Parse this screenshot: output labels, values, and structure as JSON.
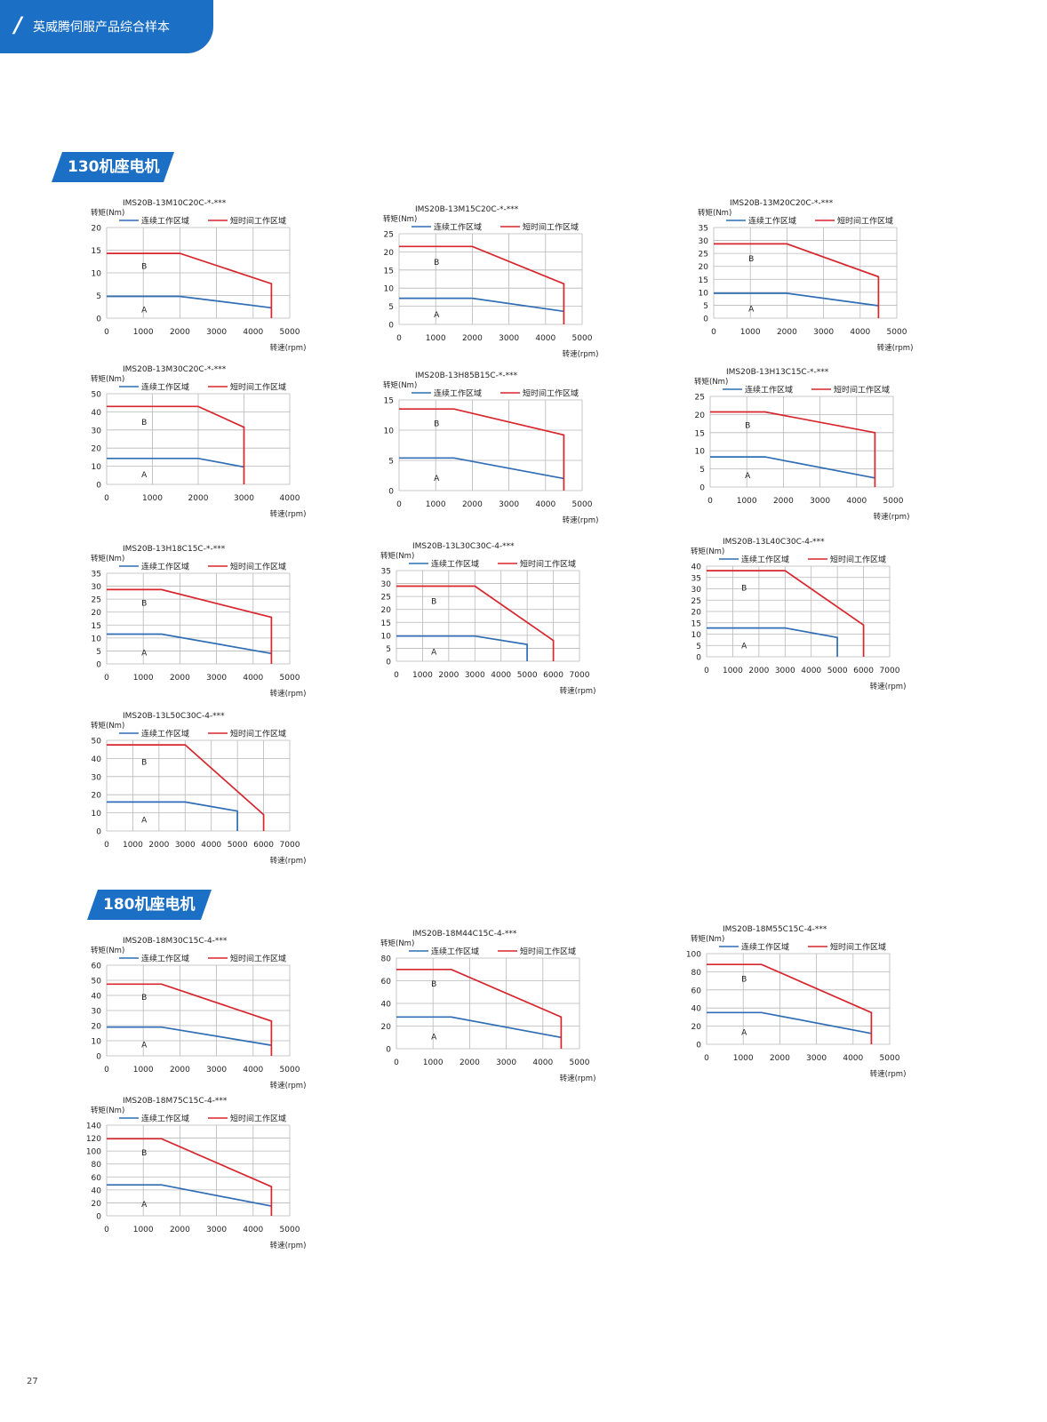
{
  "header": {
    "title": "英威腾伺服产品综合样本"
  },
  "sections": [
    {
      "label": "130机座电机"
    },
    {
      "label": "180机座电机"
    }
  ],
  "page_number": "27",
  "legend": {
    "continuous": "连续工作区域",
    "short": "短时间工作区域"
  },
  "colors": {
    "continuous": "#2f6db5",
    "short": "#d7262d",
    "accent": "#1b6fc4",
    "grid": "#b8b8b8"
  },
  "chart_data": [
    {
      "type": "line",
      "title": "IMS20B-13M10C20C-*-***",
      "ylabel": "转矩(Nm)",
      "xlabel": "转速(rpm)",
      "xlim": [
        0,
        5000
      ],
      "ylim": [
        0,
        20
      ],
      "xticks": [
        0,
        1000,
        2000,
        3000,
        4000,
        5000
      ],
      "yticks": [
        0,
        5,
        10,
        15,
        20
      ],
      "region_labels": [
        "A",
        "B"
      ],
      "series": [
        {
          "name": "连续工作区域",
          "x": [
            0,
            2000,
            4500
          ],
          "y": [
            4.8,
            4.8,
            2.3
          ]
        },
        {
          "name": "短时间工作区域",
          "x": [
            0,
            2000,
            4500,
            4500
          ],
          "y": [
            14.3,
            14.3,
            7.6,
            0
          ]
        }
      ]
    },
    {
      "type": "line",
      "title": "IMS20B-13M15C20C-*-***",
      "ylabel": "转矩(Nm)",
      "xlabel": "转速(rpm)",
      "xlim": [
        0,
        5000
      ],
      "ylim": [
        0,
        25
      ],
      "xticks": [
        0,
        1000,
        2000,
        3000,
        4000,
        5000
      ],
      "yticks": [
        0,
        5,
        10,
        15,
        20,
        25
      ],
      "region_labels": [
        "A",
        "B"
      ],
      "series": [
        {
          "name": "连续工作区域",
          "x": [
            0,
            2000,
            4500
          ],
          "y": [
            7.2,
            7.2,
            3.6
          ]
        },
        {
          "name": "短时间工作区域",
          "x": [
            0,
            2000,
            4500,
            4500
          ],
          "y": [
            21.5,
            21.5,
            11.2,
            0
          ]
        }
      ]
    },
    {
      "type": "line",
      "title": "IMS20B-13M20C20C-*-***",
      "ylabel": "转矩(Nm)",
      "xlabel": "转速(rpm)",
      "xlim": [
        0,
        5000
      ],
      "ylim": [
        0,
        35
      ],
      "xticks": [
        0,
        1000,
        2000,
        3000,
        4000,
        5000
      ],
      "yticks": [
        0,
        5,
        10,
        15,
        20,
        25,
        30,
        35
      ],
      "region_labels": [
        "A",
        "B"
      ],
      "series": [
        {
          "name": "连续工作区域",
          "x": [
            0,
            2000,
            4500
          ],
          "y": [
            9.6,
            9.6,
            4.8
          ]
        },
        {
          "name": "短时间工作区域",
          "x": [
            0,
            2000,
            4500,
            4500
          ],
          "y": [
            28.7,
            28.7,
            16,
            0
          ]
        }
      ]
    },
    {
      "type": "line",
      "title": "IMS20B-13M30C20C-*-***",
      "ylabel": "转矩(Nm)",
      "xlabel": "转速(rpm)",
      "xlim": [
        0,
        4000
      ],
      "ylim": [
        0,
        50
      ],
      "xticks": [
        0,
        1000,
        2000,
        3000,
        4000
      ],
      "yticks": [
        0,
        10,
        20,
        30,
        40,
        50
      ],
      "region_labels": [
        "A",
        "B"
      ],
      "series": [
        {
          "name": "连续工作区域",
          "x": [
            0,
            2000,
            3000
          ],
          "y": [
            14.3,
            14.3,
            9.6
          ]
        },
        {
          "name": "短时间工作区域",
          "x": [
            0,
            2000,
            3000,
            3000
          ],
          "y": [
            43,
            43,
            31.5,
            0
          ]
        }
      ]
    },
    {
      "type": "line",
      "title": "IMS20B-13H85B15C-*-***",
      "ylabel": "转矩(Nm)",
      "xlabel": "转速(rpm)",
      "xlim": [
        0,
        5000
      ],
      "ylim": [
        0,
        15
      ],
      "xticks": [
        0,
        1000,
        2000,
        3000,
        4000,
        5000
      ],
      "yticks": [
        0,
        5,
        10,
        15
      ],
      "region_labels": [
        "A",
        "B"
      ],
      "series": [
        {
          "name": "连续工作区域",
          "x": [
            0,
            1500,
            4500
          ],
          "y": [
            5.4,
            5.4,
            2
          ]
        },
        {
          "name": "短时间工作区域",
          "x": [
            0,
            1500,
            4500,
            4500
          ],
          "y": [
            13.5,
            13.5,
            9.2,
            0
          ]
        }
      ]
    },
    {
      "type": "line",
      "title": "IMS20B-13H13C15C-*-***",
      "ylabel": "转矩(Nm)",
      "xlabel": "转速(rpm)",
      "xlim": [
        0,
        5000
      ],
      "ylim": [
        0,
        25
      ],
      "xticks": [
        0,
        1000,
        2000,
        3000,
        4000,
        5000
      ],
      "yticks": [
        0,
        5,
        10,
        15,
        20,
        25
      ],
      "region_labels": [
        "A",
        "B"
      ],
      "series": [
        {
          "name": "连续工作区域",
          "x": [
            0,
            1500,
            4500
          ],
          "y": [
            8.3,
            8.3,
            2.5
          ]
        },
        {
          "name": "短时间工作区域",
          "x": [
            0,
            1500,
            4500,
            4500
          ],
          "y": [
            20.7,
            20.7,
            15,
            0
          ]
        }
      ]
    },
    {
      "type": "line",
      "title": "IMS20B-13H18C15C-*-***",
      "ylabel": "转矩(Nm)",
      "xlabel": "转速(rpm)",
      "xlim": [
        0,
        5000
      ],
      "ylim": [
        0,
        35
      ],
      "xticks": [
        0,
        1000,
        2000,
        3000,
        4000,
        5000
      ],
      "yticks": [
        0,
        5,
        10,
        15,
        20,
        25,
        30,
        35
      ],
      "region_labels": [
        "A",
        "B"
      ],
      "series": [
        {
          "name": "连续工作区域",
          "x": [
            0,
            1500,
            4500
          ],
          "y": [
            11.5,
            11.5,
            4
          ]
        },
        {
          "name": "短时间工作区域",
          "x": [
            0,
            1500,
            4500,
            4500
          ],
          "y": [
            28.7,
            28.7,
            18,
            0
          ]
        }
      ]
    },
    {
      "type": "line",
      "title": "IMS20B-13L30C30C-4-***",
      "ylabel": "转矩(Nm)",
      "xlabel": "转速(rpm)",
      "xlim": [
        0,
        7000
      ],
      "ylim": [
        0,
        35
      ],
      "xticks": [
        0,
        1000,
        2000,
        3000,
        4000,
        5000,
        6000,
        7000
      ],
      "yticks": [
        0,
        5,
        10,
        15,
        20,
        25,
        30,
        35
      ],
      "region_labels": [
        "A",
        "B"
      ],
      "series": [
        {
          "name": "连续工作区域",
          "x": [
            0,
            3000,
            5000,
            5000
          ],
          "y": [
            9.7,
            9.7,
            6.5,
            0
          ]
        },
        {
          "name": "短时间工作区域",
          "x": [
            0,
            3000,
            6000,
            6000
          ],
          "y": [
            29,
            29,
            8,
            0
          ]
        }
      ]
    },
    {
      "type": "line",
      "title": "IMS20B-13L40C30C-4-***",
      "ylabel": "转矩(Nm)",
      "xlabel": "转速(rpm)",
      "xlim": [
        0,
        7000
      ],
      "ylim": [
        0,
        40
      ],
      "xticks": [
        0,
        1000,
        2000,
        3000,
        4000,
        5000,
        6000,
        7000
      ],
      "yticks": [
        0,
        5,
        10,
        15,
        20,
        25,
        30,
        35,
        40
      ],
      "region_labels": [
        "A",
        "B"
      ],
      "series": [
        {
          "name": "连续工作区域",
          "x": [
            0,
            3000,
            5000,
            5000
          ],
          "y": [
            12.7,
            12.7,
            8.5,
            0
          ]
        },
        {
          "name": "短时间工作区域",
          "x": [
            0,
            3000,
            6000,
            6000
          ],
          "y": [
            38,
            38,
            14,
            0
          ]
        }
      ]
    },
    {
      "type": "line",
      "title": "IMS20B-13L50C30C-4-***",
      "ylabel": "转矩(Nm)",
      "xlabel": "转速(rpm)",
      "xlim": [
        0,
        7000
      ],
      "ylim": [
        0,
        50
      ],
      "xticks": [
        0,
        1000,
        2000,
        3000,
        4000,
        5000,
        6000,
        7000
      ],
      "yticks": [
        0,
        10,
        20,
        30,
        40,
        50
      ],
      "region_labels": [
        "A",
        "B"
      ],
      "series": [
        {
          "name": "连续工作区域",
          "x": [
            0,
            3000,
            5000,
            5000
          ],
          "y": [
            16,
            16,
            11,
            0
          ]
        },
        {
          "name": "短时间工作区域",
          "x": [
            0,
            3000,
            6000,
            6000
          ],
          "y": [
            47.5,
            47.5,
            9,
            0
          ]
        }
      ]
    },
    {
      "type": "line",
      "title": "IMS20B-18M30C15C-4-***",
      "ylabel": "转矩(Nm)",
      "xlabel": "转速(rpm)",
      "xlim": [
        0,
        5000
      ],
      "ylim": [
        0,
        60
      ],
      "xticks": [
        0,
        1000,
        2000,
        3000,
        4000,
        5000
      ],
      "yticks": [
        0,
        10,
        20,
        30,
        40,
        50,
        60
      ],
      "region_labels": [
        "A",
        "B"
      ],
      "series": [
        {
          "name": "连续工作区域",
          "x": [
            0,
            1500,
            4500
          ],
          "y": [
            19,
            19,
            7
          ]
        },
        {
          "name": "短时间工作区域",
          "x": [
            0,
            1500,
            4500,
            4500
          ],
          "y": [
            47.5,
            47.5,
            23,
            0
          ]
        }
      ]
    },
    {
      "type": "line",
      "title": "IMS20B-18M44C15C-4-***",
      "ylabel": "转矩(Nm)",
      "xlabel": "转速(rpm)",
      "xlim": [
        0,
        5000
      ],
      "ylim": [
        0,
        80
      ],
      "xticks": [
        0,
        1000,
        2000,
        3000,
        4000,
        5000
      ],
      "yticks": [
        0,
        20,
        40,
        60,
        80
      ],
      "region_labels": [
        "A",
        "B"
      ],
      "series": [
        {
          "name": "连续工作区域",
          "x": [
            0,
            1500,
            4500
          ],
          "y": [
            28,
            28,
            10
          ]
        },
        {
          "name": "短时间工作区域",
          "x": [
            0,
            1500,
            4500,
            4500
          ],
          "y": [
            70,
            70,
            28,
            0
          ]
        }
      ]
    },
    {
      "type": "line",
      "title": "IMS20B-18M55C15C-4-***",
      "ylabel": "转矩(Nm)",
      "xlabel": "转速(rpm)",
      "xlim": [
        0,
        5000
      ],
      "ylim": [
        0,
        100
      ],
      "xticks": [
        0,
        1000,
        2000,
        3000,
        4000,
        5000
      ],
      "yticks": [
        0,
        20,
        40,
        60,
        80,
        100
      ],
      "region_labels": [
        "A",
        "B"
      ],
      "series": [
        {
          "name": "连续工作区域",
          "x": [
            0,
            1500,
            4500
          ],
          "y": [
            35,
            35,
            12
          ]
        },
        {
          "name": "短时间工作区域",
          "x": [
            0,
            1500,
            4500,
            4500
          ],
          "y": [
            88,
            88,
            35,
            0
          ]
        }
      ]
    },
    {
      "type": "line",
      "title": "IMS20B-18M75C15C-4-***",
      "ylabel": "转矩(Nm)",
      "xlabel": "转速(rpm)",
      "xlim": [
        0,
        5000
      ],
      "ylim": [
        0,
        140
      ],
      "xticks": [
        0,
        1000,
        2000,
        3000,
        4000,
        5000
      ],
      "yticks": [
        0,
        20,
        40,
        60,
        80,
        100,
        120,
        140
      ],
      "region_labels": [
        "A",
        "B"
      ],
      "series": [
        {
          "name": "连续工作区域",
          "x": [
            0,
            1500,
            4500
          ],
          "y": [
            47.7,
            47.7,
            15
          ]
        },
        {
          "name": "短时间工作区域",
          "x": [
            0,
            1500,
            4500,
            4500
          ],
          "y": [
            119,
            119,
            45,
            0
          ]
        }
      ]
    }
  ]
}
